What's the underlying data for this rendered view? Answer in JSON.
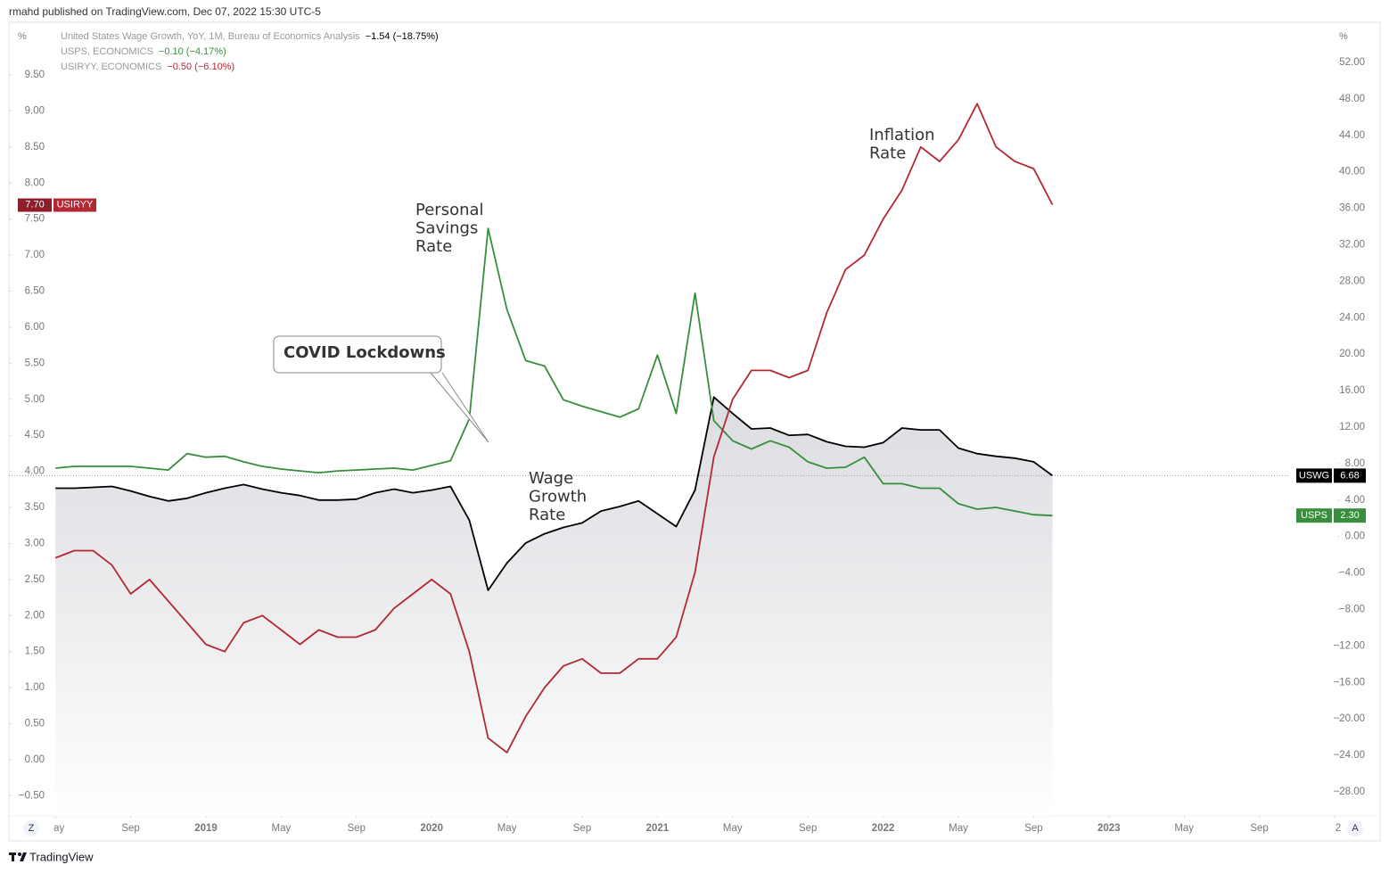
{
  "header": {
    "byline": "rmahd published on TradingView.com, Dec 07, 2022 15:30 UTC-5"
  },
  "footer": {
    "brand": "TradingView"
  },
  "controls": {
    "left": "Z",
    "right": "A"
  },
  "chart_data": {
    "type": "line",
    "x": [
      "2018-05",
      "2018-06",
      "2018-07",
      "2018-08",
      "2018-09",
      "2018-10",
      "2018-11",
      "2018-12",
      "2019-01",
      "2019-02",
      "2019-03",
      "2019-04",
      "2019-05",
      "2019-06",
      "2019-07",
      "2019-08",
      "2019-09",
      "2019-10",
      "2019-11",
      "2019-12",
      "2020-01",
      "2020-02",
      "2020-03",
      "2020-04",
      "2020-05",
      "2020-06",
      "2020-07",
      "2020-08",
      "2020-09",
      "2020-10",
      "2020-11",
      "2020-12",
      "2021-01",
      "2021-02",
      "2021-03",
      "2021-04",
      "2021-05",
      "2021-06",
      "2021-07",
      "2021-08",
      "2021-09",
      "2021-10",
      "2021-11",
      "2021-12",
      "2022-01",
      "2022-02",
      "2022-03",
      "2022-04",
      "2022-05",
      "2022-06",
      "2022-07",
      "2022-08",
      "2022-09",
      "2022-10"
    ],
    "xlim": [
      "2018-03",
      "2024-01"
    ],
    "xticks": [
      {
        "value": "2018-05",
        "label": "ay"
      },
      {
        "value": "2018-09",
        "label": "Sep"
      },
      {
        "value": "2019-01",
        "label": "2019"
      },
      {
        "value": "2019-05",
        "label": "May"
      },
      {
        "value": "2019-09",
        "label": "Sep"
      },
      {
        "value": "2020-01",
        "label": "2020"
      },
      {
        "value": "2020-05",
        "label": "May"
      },
      {
        "value": "2020-09",
        "label": "Sep"
      },
      {
        "value": "2021-01",
        "label": "2021"
      },
      {
        "value": "2021-05",
        "label": "May"
      },
      {
        "value": "2021-09",
        "label": "Sep"
      },
      {
        "value": "2022-01",
        "label": "2022"
      },
      {
        "value": "2022-05",
        "label": "May"
      },
      {
        "value": "2022-09",
        "label": "Sep"
      },
      {
        "value": "2023-01",
        "label": "2023"
      },
      {
        "value": "2023-05",
        "label": "May"
      },
      {
        "value": "2023-09",
        "label": "Sep"
      },
      {
        "value": "2024-01",
        "label": "2"
      }
    ],
    "ylim": [
      -0.78,
      10.23
    ],
    "y_unit": "%",
    "yticks": [
      {
        "value": -0.5,
        "label": "−0.50"
      },
      {
        "value": 0,
        "label": "0.00"
      },
      {
        "value": 0.5,
        "label": "0.50"
      },
      {
        "value": 1,
        "label": "1.00"
      },
      {
        "value": 1.5,
        "label": "1.50"
      },
      {
        "value": 2,
        "label": "2.00"
      },
      {
        "value": 2.5,
        "label": "2.50"
      },
      {
        "value": 3,
        "label": "3.00"
      },
      {
        "value": 3.5,
        "label": "3.50"
      },
      {
        "value": 4,
        "label": "4.00"
      },
      {
        "value": 4.5,
        "label": "4.50"
      },
      {
        "value": 5,
        "label": "5.00"
      },
      {
        "value": 5.5,
        "label": "5.50"
      },
      {
        "value": 6,
        "label": "6.00"
      },
      {
        "value": 6.5,
        "label": "6.50"
      },
      {
        "value": 7,
        "label": "7.00"
      },
      {
        "value": 7.5,
        "label": "7.50"
      },
      {
        "value": 8,
        "label": "8.00"
      },
      {
        "value": 8.5,
        "label": "8.50"
      },
      {
        "value": 9,
        "label": "9.00"
      },
      {
        "value": 9.5,
        "label": "9.50"
      }
    ],
    "y2lim": [
      -30.64,
      56.4
    ],
    "y2_unit": "%",
    "y2ticks": [
      {
        "value": -28,
        "label": "−28.00"
      },
      {
        "value": -24,
        "label": "−24.00"
      },
      {
        "value": -20,
        "label": "−20.00"
      },
      {
        "value": -16,
        "label": "−16.00"
      },
      {
        "value": -12,
        "label": "−12.00"
      },
      {
        "value": -8,
        "label": "−8.00"
      },
      {
        "value": -4,
        "label": "−4.00"
      },
      {
        "value": 0,
        "label": "0.00"
      },
      {
        "value": 4,
        "label": "4.00"
      },
      {
        "value": 8,
        "label": "8.00"
      },
      {
        "value": 12,
        "label": "12.00"
      },
      {
        "value": 16,
        "label": "16.00"
      },
      {
        "value": 20,
        "label": "20.00"
      },
      {
        "value": 24,
        "label": "24.00"
      },
      {
        "value": 28,
        "label": "28.00"
      },
      {
        "value": 32,
        "label": "32.00"
      },
      {
        "value": 36,
        "label": "36.00"
      },
      {
        "value": 40,
        "label": "40.00"
      },
      {
        "value": 44,
        "label": "44.00"
      },
      {
        "value": 48,
        "label": "48.00"
      },
      {
        "value": 52,
        "label": "52.00"
      }
    ],
    "series": [
      {
        "name": "United States Wage Growth, YoY, 1M, Bureau of Economics Analysis",
        "change": "−1.54 (−18.75%)",
        "tag": "USWG",
        "last_label": "6.68",
        "color": "#000000",
        "axis": "y2",
        "fill": true,
        "values": [
          5.3,
          5.3,
          5.4,
          5.5,
          5.0,
          4.4,
          3.9,
          4.2,
          4.8,
          5.3,
          5.7,
          5.2,
          4.8,
          4.5,
          4.0,
          4.0,
          4.1,
          4.8,
          5.2,
          4.8,
          5.1,
          5.5,
          1.8,
          -5.9,
          -2.9,
          -0.7,
          0.3,
          1.0,
          1.5,
          2.8,
          3.3,
          3.9,
          2.5,
          1.1,
          5.1,
          15.3,
          13.5,
          11.8,
          11.9,
          11.1,
          11.2,
          10.4,
          9.9,
          9.8,
          10.3,
          11.9,
          11.7,
          11.7,
          9.7,
          9.1,
          8.8,
          8.6,
          8.2,
          6.68
        ]
      },
      {
        "name": "USPS, ECONOMICS",
        "change": "−0.10 (−4.17%)",
        "tag": "USPS",
        "last_label": "2.30",
        "color": "#388e3c",
        "axis": "y2",
        "values": [
          7.5,
          7.7,
          7.7,
          7.7,
          7.7,
          7.5,
          7.3,
          9.1,
          8.7,
          8.8,
          8.2,
          7.7,
          7.4,
          7.2,
          7.0,
          7.2,
          7.3,
          7.4,
          7.5,
          7.3,
          7.8,
          8.3,
          12.9,
          33.8,
          24.9,
          19.3,
          18.7,
          15.0,
          14.3,
          13.7,
          13.1,
          14.0,
          19.9,
          13.5,
          26.7,
          12.7,
          10.5,
          9.6,
          10.5,
          9.8,
          8.2,
          7.5,
          7.6,
          8.7,
          5.8,
          5.8,
          5.3,
          5.3,
          3.6,
          3.0,
          3.2,
          2.8,
          2.4,
          2.3
        ]
      },
      {
        "name": "USIRYY, ECONOMICS",
        "change": "−0.50 (−6.10%)",
        "tag": "USIRYY",
        "last_label": "7.70",
        "color": "#b22833",
        "values": [
          2.8,
          2.9,
          2.9,
          2.7,
          2.3,
          2.5,
          2.2,
          1.9,
          1.6,
          1.5,
          1.9,
          2.0,
          1.8,
          1.6,
          1.8,
          1.7,
          1.7,
          1.8,
          2.1,
          2.3,
          2.5,
          2.3,
          1.5,
          0.3,
          0.1,
          0.6,
          1.0,
          1.3,
          1.4,
          1.2,
          1.2,
          1.4,
          1.4,
          1.7,
          2.6,
          4.2,
          5.0,
          5.4,
          5.4,
          5.3,
          5.4,
          6.2,
          6.8,
          7.0,
          7.5,
          7.9,
          8.5,
          8.3,
          8.6,
          9.1,
          8.5,
          8.3,
          8.2,
          7.7
        ]
      }
    ],
    "annotations": [
      {
        "lines": [
          "Personal",
          "Savings",
          "Rate"
        ]
      },
      {
        "lines": [
          "COVID Lockdowns"
        ],
        "boxed": true
      },
      {
        "lines": [
          "Wage",
          "Growth",
          "Rate"
        ]
      },
      {
        "lines": [
          "Inflation",
          "Rate"
        ]
      }
    ]
  }
}
